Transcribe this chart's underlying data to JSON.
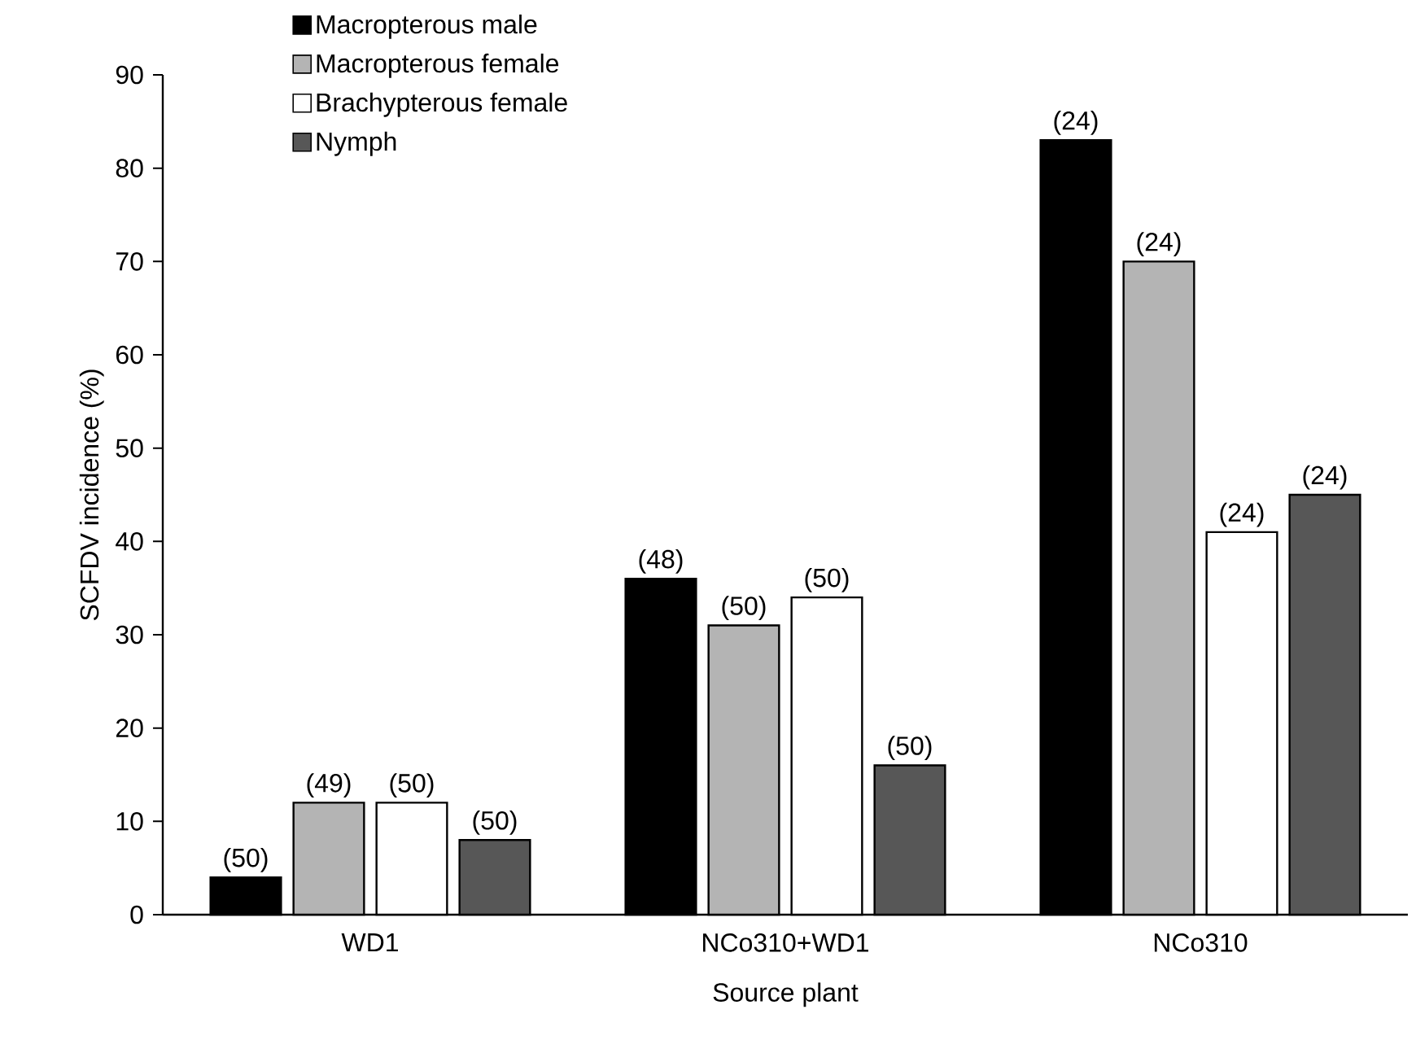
{
  "chart_data": {
    "type": "bar",
    "xlabel": "Source plant",
    "ylabel": "SCFDV incidence (%)",
    "categories": [
      "WD1",
      "NCo310+WD1",
      "NCo310"
    ],
    "series": [
      {
        "name": "Macropterous male",
        "color": "#000000",
        "values": [
          4,
          36,
          83
        ]
      },
      {
        "name": "Macropterous female",
        "color": "#b4b4b4",
        "values": [
          12,
          31,
          70
        ]
      },
      {
        "name": "Brachypterous female",
        "color": "#ffffff",
        "values": [
          12,
          34,
          41
        ]
      },
      {
        "name": "Nymph",
        "color": "#575757",
        "values": [
          8,
          16,
          45
        ]
      }
    ],
    "annotations": [
      "(50)",
      "(48)",
      "(24)",
      "(49)",
      "(50)",
      "(24)",
      "(50)",
      "(50)",
      "(24)",
      "(50)",
      "(50)",
      "(24)"
    ],
    "ylim": [
      0,
      90
    ],
    "yticks": [
      0,
      10,
      20,
      30,
      40,
      50,
      60,
      70,
      80,
      90
    ],
    "legend": "top left",
    "grid": false
  }
}
